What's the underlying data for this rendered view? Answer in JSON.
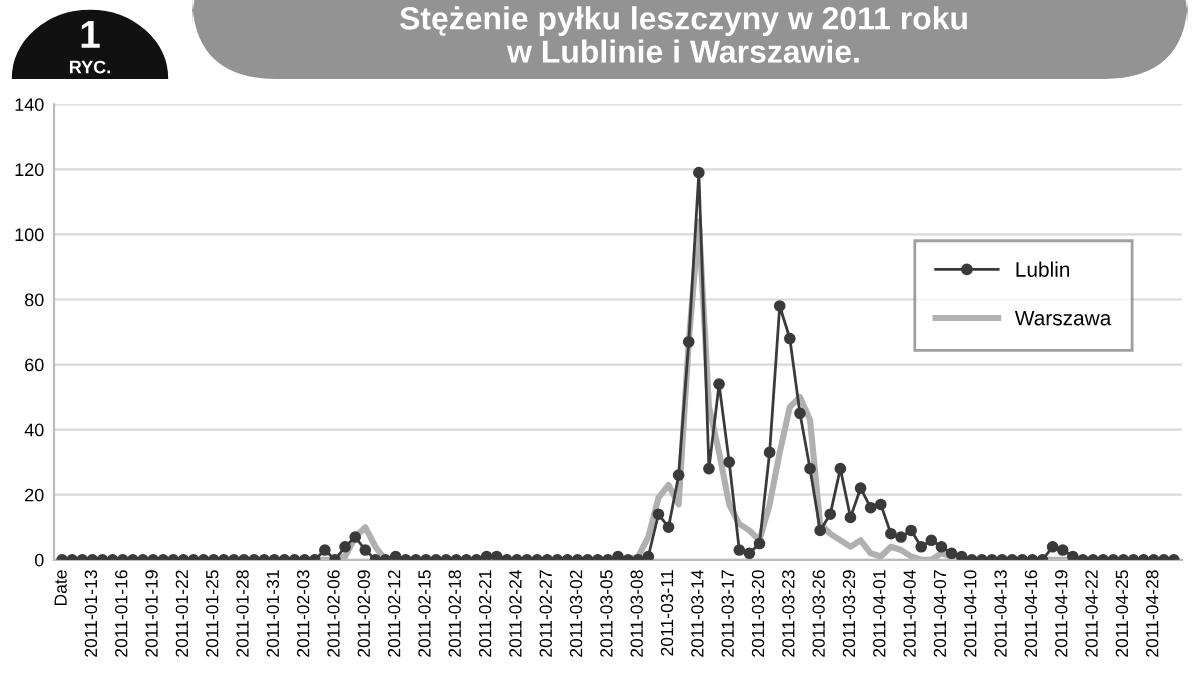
{
  "chart_data": {
    "type": "line",
    "title": "Stężenie pyłku leszczyny w 2011 roku\nw Lublinie i Warszawie.",
    "annotations": [
      "1",
      "RYC."
    ],
    "categories": [
      "Date",
      null,
      null,
      "2011-01-13",
      null,
      null,
      "2011-01-16",
      null,
      null,
      "2011-01-19",
      null,
      null,
      "2011-01-22",
      null,
      null,
      "2011-01-25",
      null,
      null,
      "2011-01-28",
      null,
      null,
      "2011-01-31",
      null,
      null,
      "2011-02-03",
      null,
      null,
      "2011-02-06",
      null,
      null,
      "2011-02-09",
      null,
      null,
      "2011-02-12",
      null,
      null,
      "2011-02-15",
      null,
      null,
      "2011-02-18",
      null,
      null,
      "2011-02-21",
      null,
      null,
      "2011-02-24",
      null,
      null,
      "2011-02-27",
      null,
      null,
      "2011-03-02",
      null,
      null,
      "2011-03-05",
      null,
      null,
      "2011-03-08",
      null,
      null,
      "2011-03-11",
      null,
      null,
      "2011-03-14",
      null,
      null,
      "2011-03-17",
      null,
      null,
      "2011-03-20",
      null,
      null,
      "2011-03-23",
      null,
      null,
      "2011-03-26",
      null,
      null,
      "2011-03-29",
      null,
      null,
      "2011-04-01",
      null,
      null,
      "2011-04-04",
      null,
      null,
      "2011-04-07",
      null,
      null,
      "2011-04-10",
      null,
      null,
      "2011-04-13",
      null,
      null,
      "2011-04-16",
      null,
      null,
      "2011-04-19",
      null,
      null,
      "2011-04-22",
      null,
      null,
      "2011-04-25",
      null,
      null,
      "2011-04-28",
      null,
      null
    ],
    "series": [
      {
        "name": "Lublin",
        "color": "#3a3a3a",
        "marker": "circle",
        "values": [
          0,
          0,
          0,
          0,
          0,
          0,
          0,
          0,
          0,
          0,
          0,
          0,
          0,
          0,
          0,
          0,
          0,
          0,
          0,
          0,
          0,
          0,
          0,
          0,
          0,
          0,
          3,
          0,
          4,
          7,
          3,
          0,
          0,
          1,
          0,
          0,
          0,
          0,
          0,
          0,
          0,
          0,
          1,
          1,
          0,
          0,
          0,
          0,
          0,
          0,
          0,
          0,
          0,
          0,
          0,
          1,
          0,
          0,
          1,
          14,
          10,
          26,
          67,
          119,
          28,
          54,
          30,
          3,
          2,
          5,
          33,
          78,
          68,
          45,
          28,
          9,
          14,
          28,
          13,
          22,
          16,
          17,
          8,
          7,
          9,
          4,
          6,
          4,
          2,
          1,
          0,
          0,
          0,
          0,
          0,
          0,
          0,
          0,
          4,
          3,
          1,
          0,
          0,
          0,
          0,
          0,
          0,
          0,
          0,
          0,
          0
        ]
      },
      {
        "name": "Warszawa",
        "color": "#b0b0b0",
        "marker": "none",
        "values": [
          0,
          0,
          0,
          0,
          0,
          0,
          0,
          0,
          0,
          0,
          0,
          0,
          0,
          0,
          0,
          0,
          0,
          0,
          0,
          0,
          0,
          0,
          0,
          0,
          0,
          0,
          0,
          0,
          1,
          7,
          10,
          4,
          0,
          0,
          0,
          0,
          0,
          0,
          0,
          0,
          0,
          0,
          0,
          0,
          0,
          0,
          0,
          0,
          0,
          0,
          0,
          0,
          0,
          0,
          0,
          0,
          0,
          1,
          7,
          19,
          23,
          17,
          67,
          104,
          47,
          33,
          17,
          11,
          9,
          6,
          17,
          33,
          47,
          50,
          43,
          11,
          8,
          6,
          4,
          6,
          2,
          1,
          4,
          3,
          1,
          0,
          0,
          2,
          1,
          0,
          0,
          0,
          0,
          0,
          0,
          0,
          0,
          0,
          0,
          0,
          0,
          0,
          0,
          0,
          0,
          0,
          0,
          0,
          0,
          0,
          0
        ]
      }
    ],
    "ylim": [
      0,
      140
    ],
    "yticks": [
      0,
      20,
      40,
      60,
      80,
      100,
      120,
      140
    ],
    "grid": "y",
    "legend": "right"
  }
}
